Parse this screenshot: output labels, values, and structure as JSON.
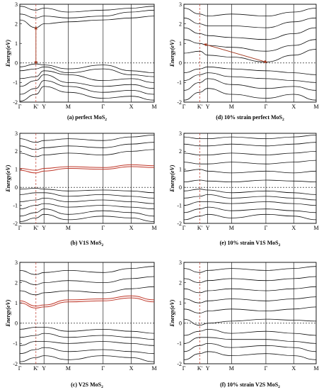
{
  "chart_data": [
    {
      "id": "a",
      "type": "line",
      "title": "",
      "ylabel": "Energy(eV)",
      "caption_prefix": "(a)",
      "caption_main": "perfect MoS",
      "caption_sub": "2",
      "ylim": [
        -2,
        3
      ],
      "yticks": [
        -2,
        -1,
        0,
        1,
        2,
        3
      ],
      "xticks": [
        "Γ",
        "K'",
        "Y",
        "M",
        "Γ",
        "X",
        "M"
      ],
      "bands_black": [
        [
          -1.95,
          -1.6,
          -1.2,
          -1.5,
          -1.8,
          -1.7,
          -1.9
        ],
        [
          -1.6,
          -1.3,
          -0.9,
          -1.2,
          -1.5,
          -1.4,
          -1.6
        ],
        [
          -1.2,
          -0.9,
          -0.6,
          -1.0,
          -1.2,
          -1.1,
          -1.3
        ],
        [
          -0.8,
          -0.7,
          -0.4,
          -0.6,
          -0.9,
          -0.8,
          -1.0
        ],
        [
          -0.4,
          -0.3,
          -0.2,
          -0.5,
          -0.3,
          -0.6,
          -0.7
        ],
        [
          -0.2,
          -0.05,
          -0.1,
          -0.3,
          -0.1,
          -0.4,
          -0.5
        ],
        [
          2.2,
          1.8,
          2.0,
          2.1,
          2.2,
          2.3,
          2.4
        ],
        [
          2.5,
          2.3,
          2.4,
          2.3,
          2.4,
          2.6,
          2.7
        ],
        [
          2.9,
          2.7,
          2.8,
          2.6,
          2.7,
          2.8,
          2.9
        ]
      ],
      "bands_red": [],
      "arrows": [
        {
          "x1": 0.12,
          "y1": 1.8,
          "x2": 0.12,
          "y2": 0.0
        }
      ]
    },
    {
      "id": "d",
      "type": "line",
      "title": "",
      "ylabel": "Energy(eV)",
      "caption_prefix": "(d)",
      "caption_main": "10% strain perfect MoS",
      "caption_sub": "2",
      "ylim": [
        -2,
        3
      ],
      "yticks": [
        -2,
        -1,
        0,
        1,
        2,
        3
      ],
      "xticks": [
        "Γ",
        "K'",
        "Y",
        "M",
        "Γ",
        "X",
        "M"
      ],
      "bands_black": [
        [
          -1.9,
          -1.5,
          -1.3,
          -1.6,
          -1.8,
          -1.6,
          -1.9
        ],
        [
          -1.4,
          -1.0,
          -0.8,
          -1.1,
          -1.3,
          -1.2,
          -1.4
        ],
        [
          -0.9,
          -0.6,
          -0.5,
          -0.7,
          -0.8,
          -0.9,
          -1.0
        ],
        [
          -0.5,
          -0.3,
          -0.2,
          -0.3,
          -0.4,
          -0.5,
          -0.6
        ],
        [
          0.5,
          0.6,
          0.4,
          0.3,
          0.05,
          0.4,
          0.7
        ],
        [
          1.2,
          1.0,
          0.9,
          0.8,
          0.6,
          0.9,
          1.2
        ],
        [
          1.8,
          1.5,
          1.4,
          1.3,
          1.2,
          1.5,
          1.8
        ],
        [
          2.3,
          2.0,
          1.9,
          1.9,
          1.8,
          2.1,
          2.3
        ],
        [
          2.8,
          2.5,
          2.4,
          2.5,
          2.4,
          2.6,
          2.8
        ]
      ],
      "bands_red": [],
      "arrows": [
        {
          "x1": 0.16,
          "y1": 0.95,
          "x2": 0.62,
          "y2": 0.05
        }
      ]
    },
    {
      "id": "b",
      "type": "line",
      "title": "",
      "ylabel": "Energy(eV)",
      "caption_prefix": "(b)",
      "caption_main": "V1S MoS",
      "caption_sub": "2",
      "ylim": [
        -2,
        3
      ],
      "yticks": [
        -2,
        -1,
        0,
        1,
        2,
        3
      ],
      "xticks": [
        "Γ",
        "K'",
        "Y",
        "M",
        "Γ",
        "X",
        "M"
      ],
      "bands_black": [
        [
          -1.9,
          -1.7,
          -1.5,
          -1.8,
          -1.6,
          -1.7,
          -1.9
        ],
        [
          -1.6,
          -1.4,
          -1.2,
          -1.5,
          -1.3,
          -1.4,
          -1.6
        ],
        [
          -1.2,
          -1.0,
          -0.9,
          -1.1,
          -1.0,
          -1.1,
          -1.2
        ],
        [
          -0.8,
          -0.7,
          -0.6,
          -0.8,
          -0.7,
          -0.8,
          -0.9
        ],
        [
          -0.4,
          -0.3,
          -0.3,
          -0.5,
          -0.4,
          -0.5,
          -0.6
        ],
        [
          -0.1,
          -0.05,
          -0.1,
          -0.2,
          -0.15,
          -0.2,
          -0.3
        ],
        [
          1.9,
          1.7,
          1.8,
          1.9,
          1.8,
          2.0,
          2.1
        ],
        [
          2.3,
          2.1,
          2.2,
          2.3,
          2.2,
          2.4,
          2.5
        ],
        [
          2.7,
          2.5,
          2.6,
          2.7,
          2.6,
          2.8,
          2.9
        ]
      ],
      "bands_red": [
        [
          0.95,
          0.8,
          0.9,
          1.05,
          1.0,
          1.15,
          1.1
        ],
        [
          1.05,
          0.95,
          1.05,
          1.15,
          1.1,
          1.25,
          1.2
        ]
      ],
      "arrows": []
    },
    {
      "id": "e",
      "type": "line",
      "title": "",
      "ylabel": "Energy(eV)",
      "caption_prefix": "(e)",
      "caption_main": "10% strain V1S MoS",
      "caption_sub": "2",
      "ylim": [
        -2,
        3
      ],
      "yticks": [
        -2,
        -1,
        0,
        1,
        2,
        3
      ],
      "xticks": [
        "Γ",
        "K'",
        "Y",
        "M",
        "Γ",
        "X",
        "M"
      ],
      "bands_black": [
        [
          -1.8,
          -1.6,
          -1.5,
          -1.7,
          -1.5,
          -1.6,
          -1.8
        ],
        [
          -1.4,
          -1.2,
          -1.1,
          -1.3,
          -1.2,
          -1.3,
          -1.4
        ],
        [
          -1.0,
          -0.8,
          -0.8,
          -0.9,
          -0.8,
          -0.9,
          -1.0
        ],
        [
          -0.6,
          -0.5,
          -0.4,
          -0.6,
          -0.5,
          -0.6,
          -0.7
        ],
        [
          -0.2,
          -0.1,
          -0.15,
          -0.3,
          -0.2,
          -0.3,
          -0.4
        ],
        [
          0.3,
          0.4,
          0.35,
          0.3,
          0.4,
          0.35,
          0.3
        ],
        [
          0.9,
          1.0,
          0.9,
          0.8,
          0.9,
          0.8,
          0.9
        ],
        [
          1.4,
          1.3,
          1.3,
          1.4,
          1.3,
          1.4,
          1.5
        ],
        [
          1.9,
          1.8,
          1.8,
          1.9,
          1.8,
          1.9,
          2.0
        ],
        [
          2.4,
          2.3,
          2.3,
          2.4,
          2.3,
          2.4,
          2.5
        ],
        [
          2.8,
          2.7,
          2.7,
          2.8,
          2.7,
          2.8,
          2.9
        ]
      ],
      "bands_red": [],
      "arrows": []
    },
    {
      "id": "c",
      "type": "line",
      "title": "",
      "ylabel": "Energy(eV)",
      "caption_prefix": "(c)",
      "caption_main": "V2S MoS",
      "caption_sub": "2",
      "ylim": [
        -2,
        3
      ],
      "yticks": [
        -2,
        -1,
        0,
        1,
        2,
        3
      ],
      "xticks": [
        "Γ",
        "K'",
        "Y",
        "M",
        "Γ",
        "X",
        "M"
      ],
      "bands_black": [
        [
          -1.9,
          -1.7,
          -1.6,
          -1.8,
          -1.6,
          -1.7,
          -1.9
        ],
        [
          -1.5,
          -1.3,
          -1.2,
          -1.4,
          -1.3,
          -1.4,
          -1.5
        ],
        [
          -1.1,
          -0.9,
          -0.9,
          -1.0,
          -0.9,
          -1.0,
          -1.1
        ],
        [
          -0.7,
          -0.6,
          -0.5,
          -0.7,
          -0.6,
          -0.7,
          -0.8
        ],
        [
          -0.3,
          -0.2,
          -0.2,
          -0.4,
          -0.3,
          -0.4,
          -0.5
        ],
        [
          1.6,
          1.4,
          1.5,
          1.6,
          1.5,
          1.7,
          1.8
        ],
        [
          2.1,
          1.9,
          2.0,
          2.1,
          2.0,
          2.2,
          2.3
        ],
        [
          2.6,
          2.4,
          2.5,
          2.6,
          2.5,
          2.7,
          2.8
        ]
      ],
      "bands_red": [
        [
          1.0,
          0.75,
          0.8,
          1.05,
          1.1,
          1.25,
          1.05
        ],
        [
          1.1,
          0.85,
          0.9,
          1.15,
          1.2,
          1.35,
          1.15
        ]
      ],
      "arrows": []
    },
    {
      "id": "f",
      "type": "line",
      "title": "",
      "ylabel": "Energy(eV)",
      "caption_prefix": "(f)",
      "caption_main": "10% strain V2S MoS",
      "caption_sub": "2",
      "ylim": [
        -2,
        3
      ],
      "yticks": [
        -2,
        -1,
        0,
        1,
        2,
        3
      ],
      "xticks": [
        "Γ",
        "K'",
        "Y",
        "M",
        "Γ",
        "X",
        "M"
      ],
      "bands_black": [
        [
          -1.8,
          -1.5,
          -1.4,
          -1.6,
          -1.5,
          -1.6,
          -1.8
        ],
        [
          -1.4,
          -1.1,
          -1.0,
          -1.2,
          -1.1,
          -1.2,
          -1.4
        ],
        [
          -1.0,
          -0.7,
          -0.7,
          -0.8,
          -0.8,
          -0.9,
          -1.0
        ],
        [
          -0.6,
          -0.4,
          -0.3,
          -0.5,
          -0.4,
          -0.5,
          -0.6
        ],
        [
          0.2,
          -0.1,
          0.0,
          0.1,
          0.2,
          0.15,
          0.1
        ],
        [
          0.7,
          0.5,
          0.6,
          0.7,
          0.6,
          0.7,
          0.8
        ],
        [
          1.2,
          1.0,
          1.1,
          1.2,
          1.1,
          1.2,
          1.3
        ],
        [
          1.7,
          1.5,
          1.6,
          1.7,
          1.6,
          1.7,
          1.8
        ],
        [
          2.2,
          2.0,
          2.1,
          2.2,
          2.1,
          2.2,
          2.3
        ],
        [
          2.7,
          2.5,
          2.6,
          2.7,
          2.6,
          2.7,
          2.8
        ]
      ],
      "bands_red": [],
      "arrows": []
    }
  ]
}
